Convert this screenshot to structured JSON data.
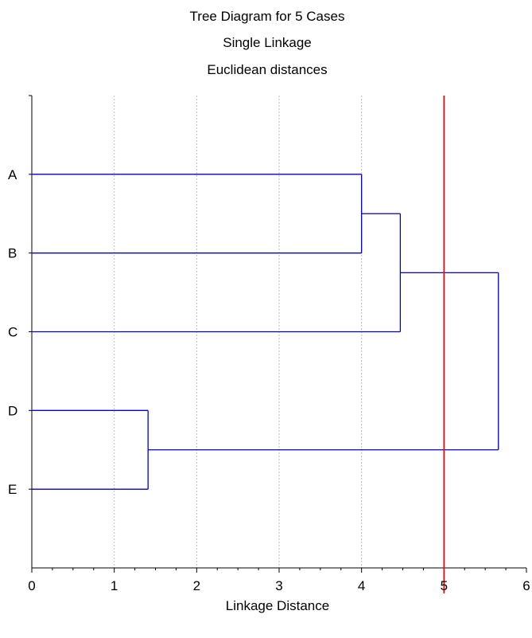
{
  "chart_data": {
    "type": "dendrogram",
    "title": [
      "Tree Diagram for 5 Cases",
      "Single Linkage",
      "Euclidean distances"
    ],
    "xlabel": "Linkage Distance",
    "ylabel": "",
    "xlim": [
      0,
      6
    ],
    "x_ticks": [
      0,
      1,
      2,
      3,
      4,
      5,
      6
    ],
    "grid": true,
    "cases": [
      "A",
      "B",
      "C",
      "D",
      "E"
    ],
    "merges": [
      {
        "left": "D",
        "right": "E",
        "distance": 1.41
      },
      {
        "left": "A",
        "right": "B",
        "distance": 4.0
      },
      {
        "left": "A,B",
        "right": "C",
        "distance": 4.47
      },
      {
        "left": "A,B,C",
        "right": "D,E",
        "distance": 5.66
      }
    ],
    "cutoff": 5,
    "colors": {
      "tree": "#0000cc",
      "cutoff": "#ee0000",
      "grid": "#bbbbbb"
    }
  }
}
